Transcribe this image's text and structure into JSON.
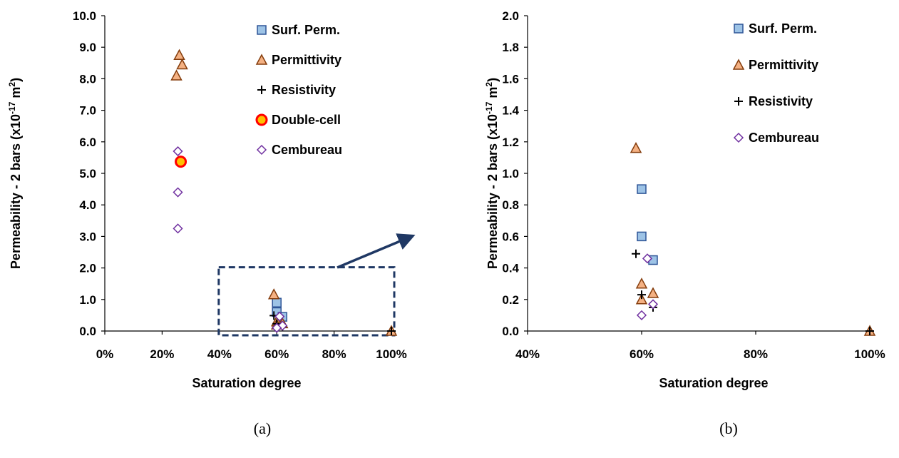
{
  "chart_data": [
    {
      "type": "scatter",
      "caption": "(a)",
      "xlabel": "Saturation degree",
      "ylabel": "Permeability - 2 bars (x10",
      "ylabel_sup": "-17",
      "ylabel_unit": " m",
      "ylabel_sup2": "2",
      "ylabel_close": ")",
      "xlim": [
        0,
        100
      ],
      "ylim": [
        0,
        10
      ],
      "x_ticks": [
        "0%",
        "20%",
        "40%",
        "60%",
        "80%",
        "100%"
      ],
      "y_ticks": [
        "0.0",
        "1.0",
        "2.0",
        "3.0",
        "4.0",
        "5.0",
        "6.0",
        "7.0",
        "8.0",
        "9.0",
        "10.0"
      ],
      "grid": false,
      "legend_position": "top-right",
      "zoom_box": {
        "x": [
          40,
          100
        ],
        "y": [
          0,
          2
        ]
      },
      "series": [
        {
          "name": "Surf. Perm.",
          "marker": "square",
          "color": "#9DC3E6",
          "stroke": "#2E5597",
          "points": [
            [
              60,
              0.9
            ],
            [
              60,
              0.6
            ],
            [
              62,
              0.45
            ]
          ]
        },
        {
          "name": "Permittivity",
          "marker": "triangle",
          "color": "#F4B183",
          "stroke": "#843C0C",
          "points": [
            [
              26,
              8.75
            ],
            [
              27,
              8.45
            ],
            [
              25,
              8.1
            ],
            [
              59,
              1.16
            ],
            [
              60,
              0.3
            ],
            [
              60,
              0.2
            ],
            [
              62,
              0.24
            ],
            [
              100,
              0
            ]
          ]
        },
        {
          "name": "Resistivity",
          "marker": "plus",
          "color": "#000000",
          "stroke": "#000000",
          "points": [
            [
              59,
              0.49
            ],
            [
              60,
              0.23
            ],
            [
              62,
              0.15
            ],
            [
              100,
              0
            ]
          ]
        },
        {
          "name": "Double-cell",
          "marker": "circle",
          "color": "#FFC000",
          "stroke": "#FF0000",
          "points": [
            [
              26.5,
              5.37
            ]
          ]
        },
        {
          "name": "Cembureau",
          "marker": "diamond",
          "color": "#FFFFFF",
          "stroke": "#7030A0",
          "points": [
            [
              25.5,
              5.7
            ],
            [
              25.5,
              4.4
            ],
            [
              25.5,
              3.25
            ],
            [
              61,
              0.46
            ],
            [
              62,
              0.17
            ],
            [
              60,
              0.1
            ]
          ]
        }
      ]
    },
    {
      "type": "scatter",
      "caption": "(b)",
      "xlabel": "Saturation degree",
      "ylabel": "Permeability - 2 bars (x10",
      "ylabel_sup": "-17",
      "ylabel_unit": " m",
      "ylabel_sup2": "2",
      "ylabel_close": ")",
      "xlim": [
        40,
        100
      ],
      "ylim": [
        0,
        2
      ],
      "x_ticks": [
        "40%",
        "60%",
        "80%",
        "100%"
      ],
      "y_ticks": [
        "0.0",
        "0.2",
        "0.4",
        "0.6",
        "0.8",
        "1.0",
        "1.2",
        "1.4",
        "1.6",
        "1.8",
        "2.0"
      ],
      "grid": false,
      "legend_position": "top-right",
      "series": [
        {
          "name": "Surf. Perm.",
          "marker": "square",
          "color": "#9DC3E6",
          "stroke": "#2E5597",
          "points": [
            [
              60,
              0.9
            ],
            [
              60,
              0.6
            ],
            [
              62,
              0.45
            ]
          ]
        },
        {
          "name": "Permittivity",
          "marker": "triangle",
          "color": "#F4B183",
          "stroke": "#843C0C",
          "points": [
            [
              59,
              1.16
            ],
            [
              60,
              0.3
            ],
            [
              60,
              0.2
            ],
            [
              62,
              0.24
            ],
            [
              100,
              0
            ]
          ]
        },
        {
          "name": "Resistivity",
          "marker": "plus",
          "color": "#000000",
          "stroke": "#000000",
          "points": [
            [
              59,
              0.49
            ],
            [
              60,
              0.23
            ],
            [
              62,
              0.15
            ],
            [
              100,
              0
            ]
          ]
        },
        {
          "name": "Cembureau",
          "marker": "diamond",
          "color": "#FFFFFF",
          "stroke": "#7030A0",
          "points": [
            [
              61,
              0.46
            ],
            [
              62,
              0.17
            ],
            [
              60,
              0.1
            ]
          ]
        }
      ]
    }
  ]
}
